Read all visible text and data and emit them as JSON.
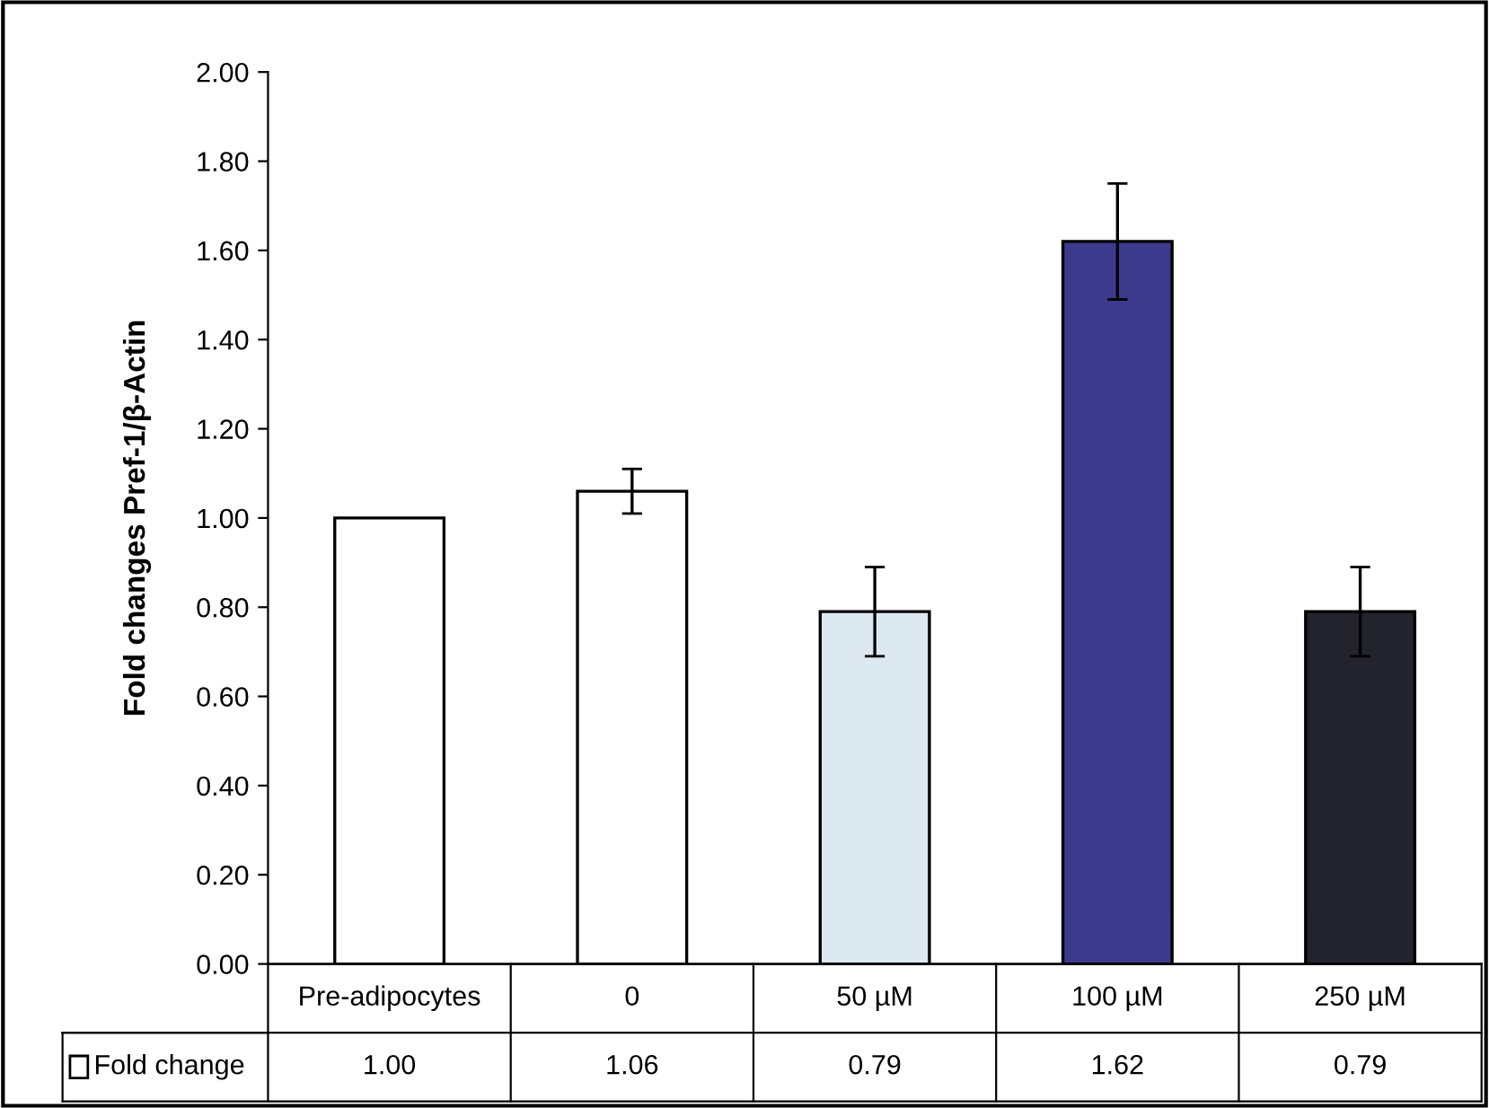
{
  "chart_data": {
    "type": "bar",
    "ylabel": "Fold changes Pref-1/β-Actin",
    "categories": [
      "Pre-adipocytes",
      "0",
      "50 µM",
      "100 µM",
      "250 µM"
    ],
    "series": [
      {
        "name": "Fold change",
        "color": "#ffffff",
        "colors": [
          "#ffffff",
          "#ffffff",
          "#dce9f0",
          "#3c3a8c",
          "#23232e"
        ],
        "values": [
          1.0,
          1.06,
          0.79,
          1.62,
          0.79
        ],
        "errors": [
          null,
          0.05,
          0.1,
          0.13,
          0.1
        ],
        "value_labels": [
          "1.00",
          "1.06",
          "0.79",
          "1.62",
          "0.79"
        ]
      }
    ],
    "ylim": [
      0,
      2
    ],
    "yticks": [
      {
        "value": 0,
        "label": "0.00"
      },
      {
        "value": 0.2,
        "label": "0.20"
      },
      {
        "value": 0.4,
        "label": "0.40"
      },
      {
        "value": 0.6,
        "label": "0.60"
      },
      {
        "value": 0.8,
        "label": "0.80"
      },
      {
        "value": 1.0,
        "label": "1.00"
      },
      {
        "value": 1.2,
        "label": "1.20"
      },
      {
        "value": 1.4,
        "label": "1.40"
      },
      {
        "value": 1.6,
        "label": "1.60"
      },
      {
        "value": 1.8,
        "label": "1.80"
      },
      {
        "value": 2.0,
        "label": "2.00"
      }
    ],
    "grid": false
  }
}
